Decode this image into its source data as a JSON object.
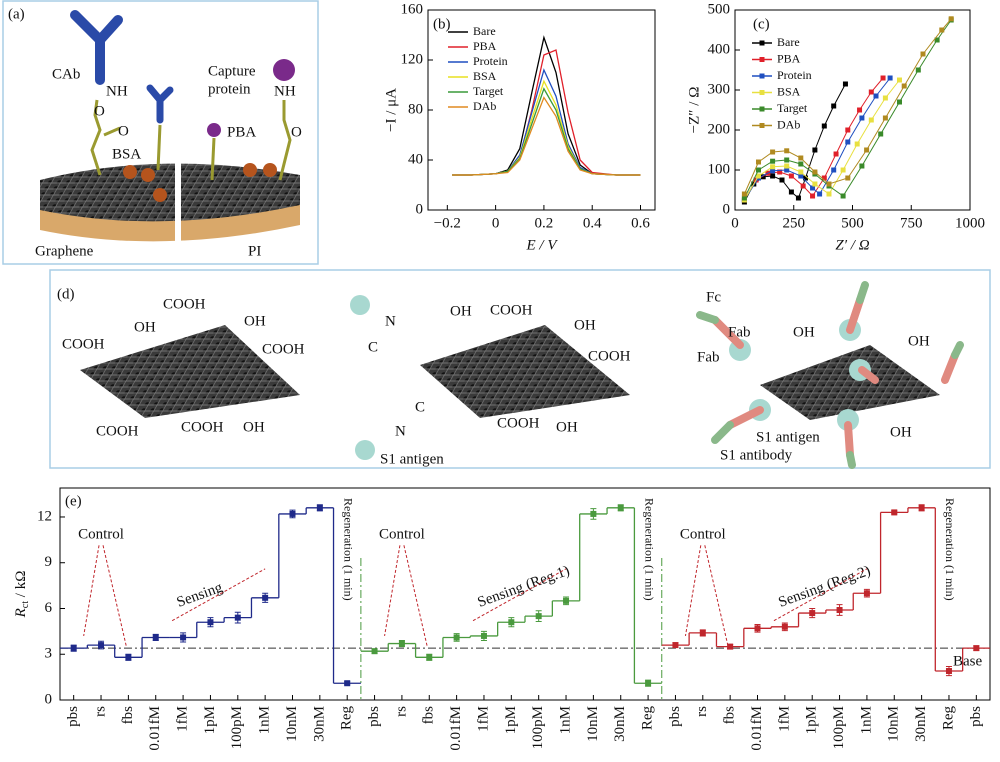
{
  "panel_a": {
    "label": "(a)",
    "texts": [
      "CAb",
      "NH",
      "O",
      "O",
      "BSA",
      "Capture",
      "protein",
      "NH",
      "PBA",
      "O",
      "Graphene",
      "PI"
    ]
  },
  "panel_d": {
    "label": "(d)",
    "texts": [
      "COOH",
      "OH",
      "COOH",
      "OH",
      "COOH",
      "COOH",
      "COOH",
      "OH",
      "N",
      "C",
      "C",
      "N",
      "S1 antigen",
      "OH",
      "COOH",
      "OH",
      "COOH",
      "COOH",
      "OH",
      "Fc",
      "Fab",
      "Fab",
      "OH",
      "OH",
      "S1 antigen",
      "S1 antibody",
      "OH"
    ]
  },
  "chart_data": [
    {
      "type": "line",
      "label": "(b)",
      "xlabel": "E / V",
      "ylabel": "−I / μA",
      "xlim": [
        -0.28,
        0.66
      ],
      "ylim": [
        0,
        160
      ],
      "xticks": [
        {
          "value": -0.2,
          "label": "−0.2"
        },
        0,
        0.2,
        0.4,
        0.6
      ],
      "yticks": [
        0,
        40,
        80,
        120,
        160
      ],
      "legend": "upper left",
      "x": [
        -0.18,
        -0.1,
        0,
        0.05,
        0.1,
        0.15,
        0.2,
        0.25,
        0.3,
        0.35,
        0.4,
        0.5,
        0.6
      ],
      "series": [
        {
          "name": "Bare",
          "color": "#000000",
          "values": [
            28,
            28,
            29,
            32,
            49,
            94,
            138,
            110,
            61,
            36,
            29,
            28,
            28
          ]
        },
        {
          "name": "PBA",
          "color": "#e0202a",
          "values": [
            28,
            28,
            29,
            31,
            42,
            80,
            124,
            128,
            78,
            40,
            30,
            28,
            28
          ]
        },
        {
          "name": "Protein",
          "color": "#1f4fc0",
          "values": [
            28,
            28,
            29,
            31,
            44,
            78,
            112,
            91,
            53,
            34,
            29,
            28,
            28
          ]
        },
        {
          "name": "BSA",
          "color": "#e8e020",
          "values": [
            28,
            28,
            29,
            31,
            42,
            73,
            103,
            84,
            51,
            33,
            29,
            28,
            28
          ]
        },
        {
          "name": "Target",
          "color": "#3a9a3a",
          "values": [
            28,
            28,
            29,
            31,
            41,
            69,
            97,
            80,
            49,
            33,
            29,
            28,
            28
          ]
        },
        {
          "name": "DAb",
          "color": "#e08a20",
          "values": [
            28,
            28,
            29,
            30,
            40,
            65,
            90,
            75,
            47,
            32,
            29,
            28,
            28
          ]
        }
      ]
    },
    {
      "type": "scatter",
      "label": "(c)",
      "xlabel": "Z′ / Ω",
      "ylabel": "−Z″ / Ω",
      "xlim": [
        0,
        1000
      ],
      "ylim": [
        0,
        500
      ],
      "xticks": [
        0,
        250,
        500,
        750,
        1000
      ],
      "yticks": [
        0,
        100,
        200,
        300,
        400,
        500
      ],
      "legend": "upper left",
      "series": [
        {
          "name": "Bare",
          "color": "#000000",
          "x": [
            40,
            80,
            120,
            160,
            200,
            240,
            270,
            300,
            340,
            380,
            420,
            470
          ],
          "values": [
            20,
            65,
            83,
            85,
            75,
            45,
            30,
            80,
            150,
            210,
            260,
            315
          ]
        },
        {
          "name": "PBA",
          "color": "#e0202a",
          "x": [
            40,
            90,
            140,
            190,
            240,
            290,
            330,
            380,
            430,
            480,
            530,
            580,
            630
          ],
          "values": [
            25,
            75,
            92,
            95,
            85,
            60,
            35,
            80,
            140,
            200,
            250,
            295,
            330
          ]
        },
        {
          "name": "Protein",
          "color": "#1f4fc0",
          "x": [
            40,
            100,
            160,
            220,
            280,
            330,
            360,
            420,
            480,
            540,
            600,
            660
          ],
          "values": [
            25,
            80,
            98,
            100,
            85,
            55,
            40,
            100,
            170,
            230,
            285,
            330
          ]
        },
        {
          "name": "BSA",
          "color": "#e8e040",
          "x": [
            40,
            100,
            160,
            220,
            280,
            340,
            400,
            460,
            520,
            580,
            640,
            700
          ],
          "values": [
            25,
            85,
            108,
            110,
            95,
            65,
            40,
            100,
            165,
            225,
            280,
            325
          ]
        },
        {
          "name": "Target",
          "color": "#3a8a2a",
          "x": [
            40,
            100,
            160,
            220,
            280,
            340,
            400,
            460,
            540,
            620,
            700,
            780,
            860,
            920
          ],
          "values": [
            30,
            100,
            122,
            125,
            115,
            90,
            60,
            35,
            110,
            190,
            270,
            350,
            425,
            475
          ]
        },
        {
          "name": "DAb",
          "color": "#b08a20",
          "x": [
            40,
            100,
            160,
            220,
            280,
            340,
            400,
            480,
            560,
            640,
            720,
            800,
            880,
            920
          ],
          "values": [
            40,
            120,
            145,
            148,
            130,
            95,
            65,
            80,
            150,
            230,
            310,
            390,
            450,
            478
          ]
        }
      ]
    },
    {
      "type": "step",
      "label": "(e)",
      "ylabel": [
        "R",
        "ct",
        " / kΩ"
      ],
      "ylim": [
        0,
        13.9
      ],
      "yticks": [
        0,
        3,
        6,
        9,
        12
      ],
      "baseline": 3.4,
      "categories": [
        "pbs",
        "rs",
        "fbs",
        "0.01fM",
        "1fM",
        "1pM",
        "100pM",
        "1nM",
        "10nM",
        "30nM",
        "Reg",
        "pbs",
        "rs",
        "fbs",
        "0.01fM",
        "1fM",
        "1pM",
        "100pM",
        "1nM",
        "10nM",
        "30nM",
        "Reg",
        "pbs",
        "rs",
        "fbs",
        "0.01fM",
        "1fM",
        "1pM",
        "100pM",
        "1nM",
        "10nM",
        "30nM",
        "Reg",
        "pbs"
      ],
      "series": [
        {
          "color": "#1f2a8a",
          "values": [
            3.4,
            3.6,
            2.8,
            4.1,
            4.1,
            5.1,
            5.4,
            6.7,
            12.2,
            12.6,
            1.1,
            null,
            null,
            null,
            null,
            null,
            null,
            null,
            null,
            null,
            null,
            null,
            null,
            null,
            null,
            null,
            null,
            null,
            null,
            null,
            null,
            null,
            null,
            null
          ],
          "errors": [
            0.2,
            0.25,
            0.2,
            0.2,
            0.3,
            0.3,
            0.35,
            0.3,
            0.25,
            0.2,
            0.1,
            null,
            null,
            null,
            null,
            null,
            null,
            null,
            null,
            null,
            null,
            null,
            null,
            null,
            null,
            null,
            null,
            null,
            null,
            null,
            null,
            null,
            null,
            null
          ]
        },
        {
          "color": "#4a9a3e",
          "values": [
            null,
            null,
            null,
            null,
            null,
            null,
            null,
            null,
            null,
            null,
            null,
            3.2,
            3.7,
            2.8,
            4.1,
            4.2,
            5.1,
            5.5,
            6.5,
            12.2,
            12.6,
            1.1,
            null,
            null,
            null,
            null,
            null,
            null,
            null,
            null,
            null,
            null,
            null,
            null
          ],
          "errors": [
            null,
            null,
            null,
            null,
            null,
            null,
            null,
            null,
            null,
            null,
            null,
            0.15,
            0.2,
            0.2,
            0.25,
            0.3,
            0.3,
            0.35,
            0.25,
            0.35,
            0.2,
            0.2,
            null,
            null,
            null,
            null,
            null,
            null,
            null,
            null,
            null,
            null,
            null,
            null
          ]
        },
        {
          "color": "#c0262c",
          "values": [
            null,
            null,
            null,
            null,
            null,
            null,
            null,
            null,
            null,
            null,
            null,
            null,
            null,
            null,
            null,
            null,
            null,
            null,
            null,
            null,
            null,
            null,
            3.6,
            4.4,
            3.5,
            4.7,
            4.8,
            5.7,
            5.9,
            7.0,
            12.3,
            12.6,
            1.9,
            3.4
          ],
          "errors": [
            null,
            null,
            null,
            null,
            null,
            null,
            null,
            null,
            null,
            null,
            null,
            null,
            null,
            null,
            null,
            null,
            null,
            null,
            null,
            null,
            null,
            null,
            0.15,
            0.2,
            0.15,
            0.25,
            0.25,
            0.3,
            0.35,
            0.25,
            0.1,
            0.2,
            0.3,
            0.15
          ]
        }
      ],
      "annotations": {
        "control": [
          "Control",
          "Control",
          "Control"
        ],
        "sensing": [
          "Sensing",
          "Sensing (Reg.1)",
          "Sensing (Reg.2)"
        ],
        "regeneration": [
          "Regeneration (1 min)",
          "Regeneration (1 min)",
          "Regeneration (1 min)"
        ],
        "base": "Base"
      }
    }
  ]
}
